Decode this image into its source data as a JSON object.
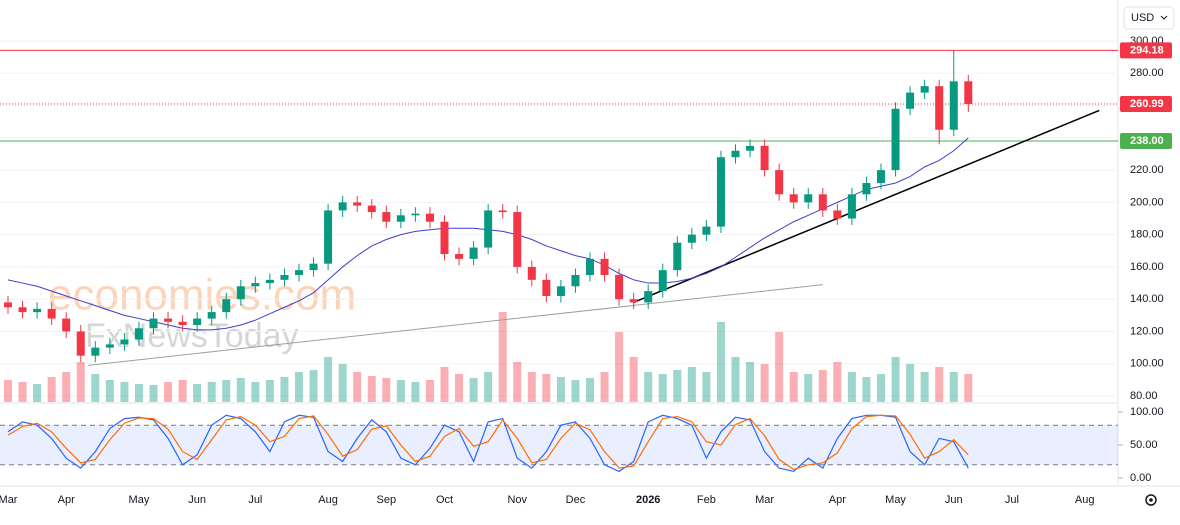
{
  "chart_data": {
    "type": "candlestick",
    "currency": "USD",
    "watermark": [
      "economies.com",
      "FxNewsToday"
    ],
    "categories": [
      "Mar",
      null,
      null,
      null,
      "Apr",
      null,
      null,
      null,
      null,
      "May",
      null,
      null,
      null,
      "Jun",
      null,
      null,
      null,
      "Jul",
      null,
      null,
      null,
      null,
      "Aug",
      null,
      null,
      null,
      "Sep",
      null,
      null,
      null,
      "Oct",
      null,
      null,
      null,
      null,
      "Nov",
      null,
      null,
      null,
      "Dec",
      null,
      null,
      null,
      null,
      "2026",
      null,
      null,
      null,
      "Feb",
      null,
      null,
      null,
      "Mar",
      null,
      null,
      null,
      null,
      "Apr",
      null,
      null,
      null,
      "May",
      null,
      null,
      null,
      "Jun",
      null,
      null,
      null,
      "Jul",
      null,
      null,
      null,
      null,
      "Aug",
      null
    ],
    "open": [
      138,
      135,
      132,
      134,
      128,
      120,
      105,
      110,
      112,
      115,
      122,
      128,
      126,
      124,
      128,
      132,
      140,
      148,
      150,
      152,
      155,
      158,
      162,
      195,
      200,
      198,
      194,
      188,
      192,
      193,
      188,
      168,
      165,
      172,
      195,
      194,
      160,
      152,
      142,
      148,
      155,
      165,
      155,
      140,
      138,
      145,
      158,
      175,
      180,
      185,
      228,
      232,
      235,
      220,
      205,
      200,
      205,
      195,
      190,
      205,
      212,
      220,
      258,
      268,
      272,
      245,
      275,
      null,
      null,
      null,
      null,
      null,
      null,
      null,
      null,
      null
    ],
    "high": [
      142,
      139,
      138,
      138,
      132,
      124,
      114,
      116,
      119,
      126,
      132,
      132,
      130,
      132,
      136,
      144,
      152,
      154,
      156,
      159,
      162,
      166,
      199,
      204,
      204,
      202,
      198,
      196,
      197,
      197,
      192,
      172,
      176,
      199,
      199,
      198,
      164,
      156,
      152,
      159,
      169,
      169,
      159,
      144,
      149,
      162,
      179,
      184,
      189,
      232,
      236,
      239,
      239,
      224,
      209,
      209,
      209,
      199,
      209,
      216,
      224,
      262,
      272,
      276,
      276,
      294.18,
      279,
      null,
      null,
      null,
      null,
      null,
      null,
      null,
      null,
      null
    ],
    "low": [
      131,
      128,
      128,
      124,
      116,
      101,
      101,
      106,
      108,
      111,
      118,
      122,
      120,
      120,
      124,
      128,
      136,
      144,
      146,
      148,
      151,
      154,
      158,
      191,
      194,
      190,
      184,
      184,
      188,
      184,
      164,
      161,
      161,
      168,
      190,
      156,
      148,
      138,
      138,
      144,
      151,
      151,
      136,
      134,
      134,
      141,
      154,
      171,
      176,
      181,
      224,
      228,
      216,
      201,
      196,
      196,
      191,
      186,
      186,
      201,
      208,
      216,
      254,
      264,
      236,
      241,
      256,
      null,
      null,
      null,
      null,
      null,
      null,
      null,
      null,
      null
    ],
    "close": [
      135,
      132,
      134,
      128,
      120,
      105,
      110,
      112,
      115,
      122,
      128,
      126,
      124,
      128,
      132,
      140,
      148,
      150,
      152,
      155,
      158,
      162,
      195,
      200,
      198,
      194,
      188,
      192,
      193,
      188,
      168,
      165,
      172,
      195,
      194,
      160,
      152,
      142,
      148,
      155,
      165,
      155,
      140,
      138,
      145,
      158,
      175,
      180,
      185,
      228,
      232,
      235,
      220,
      205,
      200,
      205,
      195,
      190,
      205,
      212,
      220,
      258,
      268,
      272,
      245,
      275,
      260.99,
      null,
      null,
      null,
      null,
      null,
      null,
      null,
      null,
      null
    ],
    "volume": [
      22,
      20,
      18,
      25,
      30,
      40,
      28,
      22,
      20,
      18,
      17,
      20,
      22,
      18,
      20,
      22,
      24,
      20,
      22,
      25,
      30,
      32,
      45,
      38,
      30,
      26,
      24,
      22,
      20,
      22,
      35,
      28,
      24,
      30,
      90,
      40,
      30,
      28,
      25,
      22,
      24,
      30,
      70,
      45,
      30,
      28,
      32,
      35,
      30,
      80,
      45,
      40,
      38,
      70,
      30,
      28,
      32,
      40,
      30,
      25,
      28,
      45,
      38,
      30,
      35,
      30,
      28,
      null,
      null,
      null,
      null,
      null,
      null,
      null,
      null,
      null
    ],
    "up_color": "#089981",
    "down_color": "#f23645",
    "ma": {
      "color": "#3f3fc8",
      "values": [
        152,
        150,
        148,
        145,
        142,
        139,
        136,
        133,
        130,
        128,
        126,
        124,
        122,
        121,
        121,
        122,
        124,
        127,
        131,
        135,
        139,
        144,
        152,
        160,
        167,
        173,
        177,
        180,
        182,
        183,
        184,
        184,
        184,
        183,
        182,
        180,
        177,
        173,
        170,
        167,
        165,
        161,
        156,
        152,
        150,
        150,
        151,
        153,
        156,
        160,
        166,
        172,
        178,
        183,
        188,
        192,
        196,
        200,
        204,
        208,
        210,
        212,
        216,
        222,
        226,
        232,
        240,
        null,
        null,
        null,
        null,
        null,
        null,
        null,
        null,
        null
      ]
    },
    "trendlines": [
      {
        "from": [
          43,
          138
        ],
        "to": [
          75,
          257
        ],
        "color": "#000000"
      },
      {
        "from": [
          5.5,
          99
        ],
        "to": [
          56,
          149
        ],
        "color": "#9e9e9e"
      }
    ],
    "levels": [
      {
        "value": 294.18,
        "label": "294.18",
        "color": "#f23645",
        "style": "solid"
      },
      {
        "value": 260.99,
        "label": "260.99",
        "color": "#f23645",
        "style": "dotted"
      },
      {
        "value": 238,
        "label": "238.00",
        "color": "#4caf50",
        "style": "solid"
      }
    ],
    "ylim": [
      76.3,
      325.4
    ],
    "yticks": [
      {
        "value": 80,
        "label": "80.00"
      },
      {
        "value": 100,
        "label": "100.00"
      },
      {
        "value": 120,
        "label": "120.00"
      },
      {
        "value": 140,
        "label": "140.00"
      },
      {
        "value": 160,
        "label": "160.00"
      },
      {
        "value": 180,
        "label": "180.00"
      },
      {
        "value": 200,
        "label": "200.00"
      },
      {
        "value": 220,
        "label": "220.00"
      },
      {
        "value": 240,
        "label": "240.00"
      },
      {
        "value": 260,
        "label": "260.00"
      },
      {
        "value": 280,
        "label": "280.00"
      },
      {
        "value": 300,
        "label": "300.00"
      }
    ],
    "stochastic": {
      "ylim": [
        -10.6,
        112.1
      ],
      "band": [
        20,
        80
      ],
      "yticks": [
        {
          "value": 0,
          "label": "0.00"
        },
        {
          "value": 50,
          "label": "50.00"
        },
        {
          "value": 100,
          "label": "100.00"
        }
      ],
      "series": [
        {
          "color": "#2962ff",
          "values": [
            70,
            85,
            80,
            60,
            30,
            15,
            40,
            75,
            90,
            92,
            88,
            60,
            20,
            35,
            80,
            95,
            90,
            70,
            40,
            85,
            95,
            92,
            40,
            25,
            60,
            88,
            70,
            30,
            20,
            45,
            80,
            70,
            25,
            85,
            90,
            30,
            15,
            40,
            80,
            85,
            60,
            20,
            10,
            25,
            85,
            95,
            90,
            80,
            30,
            70,
            92,
            88,
            40,
            15,
            10,
            30,
            15,
            60,
            90,
            95,
            95,
            92,
            40,
            20,
            60,
            55,
            15,
            null,
            null,
            null,
            null,
            null,
            null,
            null,
            null,
            null
          ]
        },
        {
          "color": "#ff6d00",
          "values": [
            65,
            78,
            83,
            70,
            45,
            23,
            28,
            58,
            83,
            91,
            90,
            74,
            40,
            28,
            58,
            88,
            93,
            80,
            55,
            63,
            90,
            94,
            66,
            33,
            43,
            74,
            79,
            50,
            25,
            33,
            63,
            75,
            48,
            55,
            88,
            60,
            23,
            28,
            60,
            83,
            73,
            40,
            15,
            18,
            55,
            90,
            93,
            85,
            55,
            50,
            81,
            90,
            64,
            28,
            13,
            20,
            23,
            38,
            75,
            93,
            95,
            94,
            66,
            30,
            40,
            58,
            35,
            null,
            null,
            null,
            null,
            null,
            null,
            null,
            null,
            null
          ]
        }
      ]
    }
  }
}
